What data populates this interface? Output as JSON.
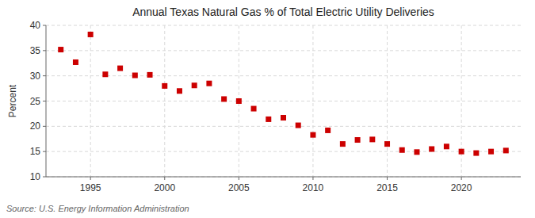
{
  "chart_data": {
    "type": "scatter",
    "title": "Annual Texas Natural Gas % of Total Electric Utility Deliveries",
    "ylabel": "Percent",
    "annotations": [
      "Source: U.S. Energy Information Administration"
    ],
    "x": [
      1993,
      1994,
      1995,
      1996,
      1997,
      1998,
      1999,
      2000,
      2001,
      2002,
      2003,
      2004,
      2005,
      2006,
      2007,
      2008,
      2009,
      2010,
      2011,
      2012,
      2013,
      2014,
      2015,
      2016,
      2017,
      2018,
      2019,
      2020,
      2021,
      2022,
      2023
    ],
    "values": [
      35.2,
      32.7,
      38.2,
      30.3,
      31.5,
      30.1,
      30.2,
      28.0,
      27.0,
      28.1,
      28.5,
      25.4,
      25.0,
      23.5,
      21.4,
      21.7,
      20.2,
      18.3,
      19.2,
      16.5,
      17.3,
      17.4,
      16.5,
      15.3,
      14.9,
      15.5,
      16.0,
      15.0,
      14.7,
      15.0,
      15.2
    ],
    "xlim": [
      1992,
      2024
    ],
    "xticks": [
      1995,
      2000,
      2005,
      2010,
      2015,
      2020
    ],
    "ylim": [
      10,
      40
    ],
    "yticks": [
      10,
      15,
      20,
      25,
      30,
      35,
      40
    ],
    "color": "#cc0000",
    "marker": "square",
    "grid": true
  }
}
